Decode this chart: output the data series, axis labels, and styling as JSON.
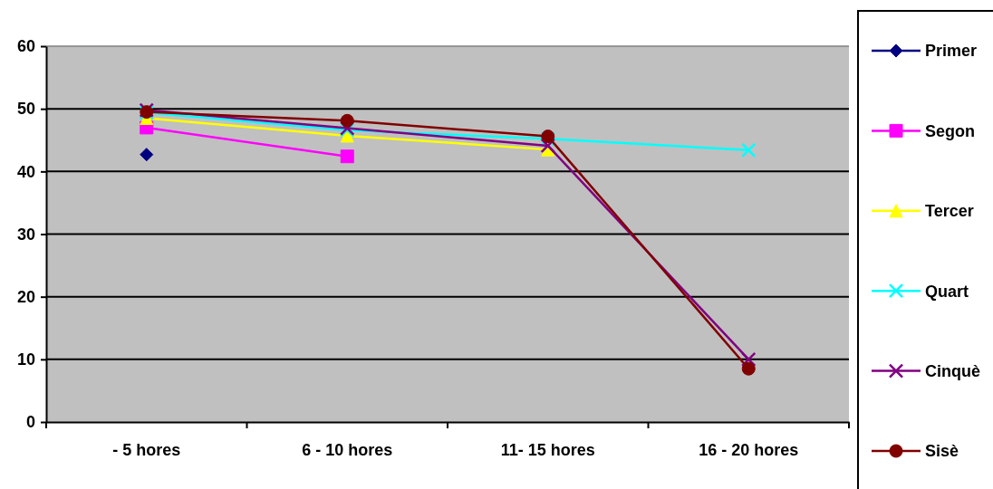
{
  "chart_data": {
    "type": "line",
    "categories": [
      "- 5 hores",
      "6 - 10 hores",
      "11- 15 hores",
      "16 - 20 hores"
    ],
    "series": [
      {
        "name": "Primer",
        "color": "#000080",
        "marker": "diamond",
        "values": [
          42.7,
          null,
          null,
          null
        ]
      },
      {
        "name": "Segon",
        "color": "#ff00ff",
        "marker": "square",
        "values": [
          47,
          42.4,
          null,
          null
        ]
      },
      {
        "name": "Tercer",
        "color": "#ffff00",
        "marker": "triangle",
        "values": [
          48.5,
          45.7,
          43.5,
          null
        ]
      },
      {
        "name": "Quart",
        "color": "#00ffff",
        "marker": "cross",
        "values": [
          49.4,
          46.6,
          45.2,
          43.4
        ]
      },
      {
        "name": "Cinquè",
        "color": "#800080",
        "marker": "cross",
        "values": [
          49.8,
          46.9,
          44.1,
          10
        ]
      },
      {
        "name": "Sisè",
        "color": "#800000",
        "marker": "circle",
        "values": [
          49.5,
          48.1,
          45.6,
          8.5
        ]
      }
    ],
    "ylim": [
      0,
      60
    ],
    "yticks": [
      0,
      10,
      20,
      30,
      40,
      50,
      60
    ],
    "grid": "y",
    "legend": "right"
  }
}
